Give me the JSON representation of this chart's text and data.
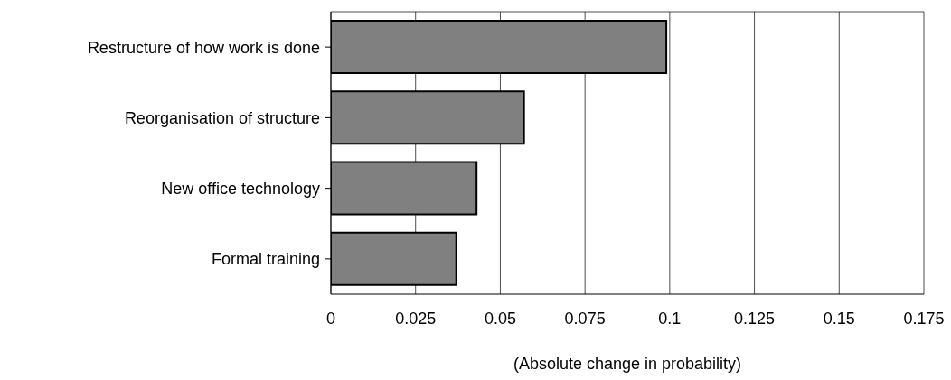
{
  "chart_data": {
    "type": "bar",
    "orientation": "horizontal",
    "xlabel": "(Absolute change in probability)",
    "categories": [
      "Restructure of how work is done",
      "Reorganisation of structure",
      "New office technology",
      "Formal training"
    ],
    "values": [
      0.099,
      0.057,
      0.043,
      0.037
    ],
    "color": "#808080",
    "xlim": [
      0,
      0.175
    ],
    "xticks": [
      0,
      0.025,
      0.05,
      0.075,
      0.1,
      0.125,
      0.15,
      0.175
    ],
    "grid": "x"
  }
}
